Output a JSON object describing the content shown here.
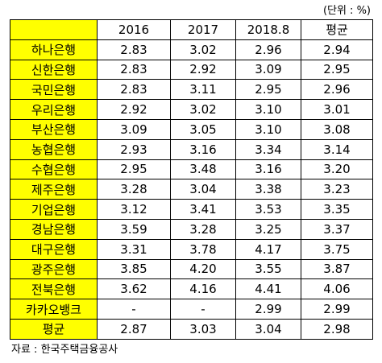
{
  "unit": "(단위 : %)",
  "table": {
    "header": [
      "2016",
      "2017",
      "2018.8",
      "평균"
    ],
    "rows": [
      [
        "하나은행",
        "2.83",
        "3.02",
        "2.96",
        "2.94"
      ],
      [
        "신한은행",
        "2.83",
        "2.92",
        "3.09",
        "2.95"
      ],
      [
        "국민은행",
        "2.83",
        "3.11",
        "2.95",
        "2.96"
      ],
      [
        "우리은행",
        "2.92",
        "3.02",
        "3.10",
        "3.01"
      ],
      [
        "부산은행",
        "3.09",
        "3.05",
        "3.10",
        "3.08"
      ],
      [
        "농협은행",
        "2.93",
        "3.16",
        "3.34",
        "3.14"
      ],
      [
        "수협은행",
        "2.95",
        "3.48",
        "3.16",
        "3.20"
      ],
      [
        "제주은행",
        "3.28",
        "3.04",
        "3.38",
        "3.23"
      ],
      [
        "기업은행",
        "3.12",
        "3.41",
        "3.53",
        "3.35"
      ],
      [
        "경남은행",
        "3.59",
        "3.28",
        "3.25",
        "3.37"
      ],
      [
        "대구은행",
        "3.31",
        "3.78",
        "4.17",
        "3.75"
      ],
      [
        "광주은행",
        "3.85",
        "4.20",
        "3.55",
        "3.87"
      ],
      [
        "전북은행",
        "3.62",
        "4.16",
        "4.41",
        "4.06"
      ],
      [
        "카카오뱅크",
        "-",
        "-",
        "2.99",
        "2.99"
      ],
      [
        "평균",
        "2.87",
        "3.03",
        "3.04",
        "2.98"
      ]
    ]
  },
  "source": "자료 : 한국주택금융공사"
}
